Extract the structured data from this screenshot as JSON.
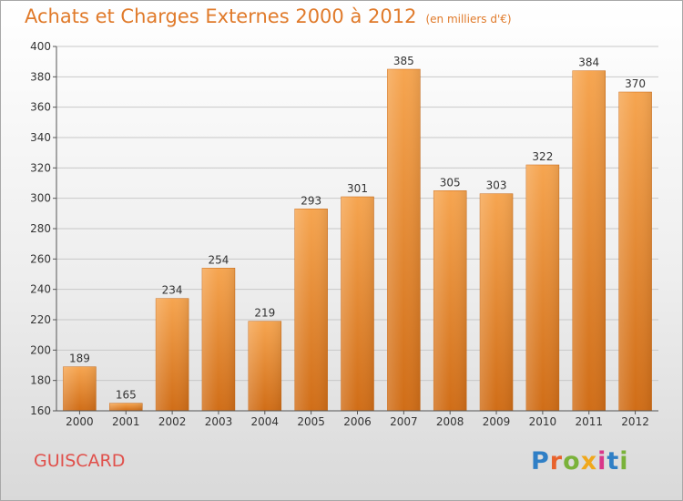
{
  "header": {
    "title": "Achats et Charges Externes 2000 à 2012",
    "unit": "(en milliers d'€)"
  },
  "footer": {
    "commune": "GUISCARD",
    "logo": [
      "P",
      "r",
      "o",
      "x",
      "i",
      "t",
      "i"
    ]
  },
  "colors": {
    "bar": "#f09a40",
    "title": "#e07a2a",
    "commune": "#e0504b"
  },
  "chart_data": {
    "type": "bar",
    "categories": [
      "2000",
      "2001",
      "2002",
      "2003",
      "2004",
      "2005",
      "2006",
      "2007",
      "2008",
      "2009",
      "2010",
      "2011",
      "2012"
    ],
    "values": [
      189,
      165,
      234,
      254,
      219,
      293,
      301,
      385,
      305,
      303,
      322,
      384,
      370
    ],
    "ylim": [
      160,
      400
    ],
    "yticks": [
      160,
      180,
      200,
      220,
      240,
      260,
      280,
      300,
      320,
      340,
      360,
      380,
      400
    ],
    "grid": true,
    "xlabel": "",
    "ylabel": ""
  }
}
